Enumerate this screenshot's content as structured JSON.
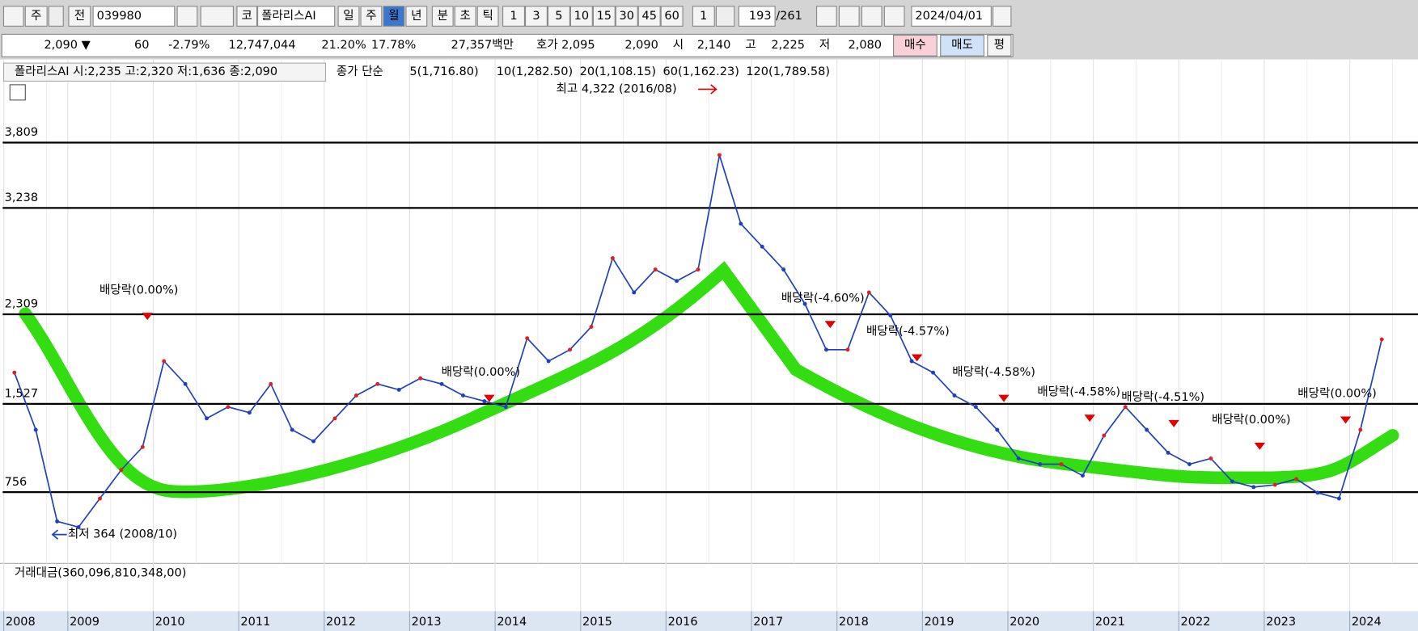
{
  "toolbar": {
    "market": "주",
    "prev": "전",
    "code": "039980",
    "exchange": "코",
    "name": "폴라리스AI",
    "periods": [
      "일",
      "주",
      "월",
      "년",
      "분",
      "초",
      "틱"
    ],
    "intervals": [
      "1",
      "3",
      "5",
      "10",
      "15",
      "30",
      "45",
      "60"
    ],
    "count": "1",
    "position": "193",
    "total": "/261",
    "date": "2024/04/01"
  },
  "quote": {
    "price": "2,090 ▼",
    "change": "60",
    "change_pct": "-2.79%",
    "volume": "12,747,044",
    "ratio1": "21.20%",
    "ratio2": "17.78%",
    "amount": "27,357백만",
    "bid_label": "호가",
    "ask": "2,095",
    "bid": "2,090",
    "open_label": "시",
    "open": "2,140",
    "high_label": "고",
    "high": "2,225",
    "low_label": "저",
    "low": "2,080",
    "buy": "매수",
    "sell": "매도",
    "avg": "평"
  },
  "legend": {
    "price": "폴라리스AI 시:2,235 고:2,320 저:1,636 종:2,090",
    "ma_title": "종가 단순",
    "ma": [
      {
        "label": "5(1,716.80)",
        "color": "#e020c0"
      },
      {
        "label": "10(1,282.50)",
        "color": "#2040e0"
      },
      {
        "label": "20(1,108.15)",
        "color": "#f0a000"
      },
      {
        "label": "60(1,162.23)",
        "color": "#10a020"
      },
      {
        "label": "120(1,789.58)",
        "color": "#888888"
      }
    ]
  },
  "chart_data": {
    "type": "line",
    "color": "#1f3fbf",
    "categories": [
      "2008",
      null,
      null,
      "2009",
      null,
      null,
      null,
      "2010",
      null,
      null,
      null,
      "2011",
      null,
      null,
      null,
      "2012",
      null,
      null,
      null,
      "2013",
      null,
      null,
      null,
      "2014",
      null,
      null,
      null,
      "2015",
      null,
      null,
      null,
      "2016",
      null,
      null,
      null,
      "2017",
      null,
      null,
      null,
      "2018",
      null,
      null,
      null,
      "2019",
      null,
      null,
      null,
      "2020",
      null,
      null,
      null,
      "2021",
      null,
      null,
      null,
      "2022",
      null,
      null,
      null,
      "2023",
      null,
      null,
      null,
      "2024",
      null
    ],
    "values": [
      1800,
      1300,
      500,
      450,
      700,
      950,
      1150,
      1900,
      1700,
      1400,
      1500,
      1450,
      1700,
      1300,
      1200,
      1400,
      1600,
      1700,
      1650,
      1750,
      1700,
      1600,
      1550,
      1500,
      2100,
      1900,
      2000,
      2200,
      2800,
      2500,
      2700,
      2600,
      2700,
      3700,
      3100,
      2900,
      2700,
      2400,
      2000,
      2000,
      2500,
      2300,
      1900,
      1800,
      1600,
      1500,
      1300,
      1050,
      1000,
      1000,
      900,
      1250,
      1500,
      1300,
      1100,
      1000,
      1050,
      850,
      800,
      820,
      870,
      750,
      700,
      1300,
      2090
    ],
    "ylim": [
      157,
      4330
    ],
    "levels": [
      {
        "value": 3809,
        "label": "3,809"
      },
      {
        "value": 3238,
        "label": "3,238"
      },
      {
        "value": 2309,
        "label": "2,309"
      },
      {
        "value": 1527,
        "label": "1,527"
      },
      {
        "value": 756,
        "label": "756"
      }
    ],
    "annotations": [
      "배당락(0.00%)",
      "배당락(0.00%)",
      "배당락(-4.60%)",
      "배당락(-4.57%)",
      "배당락(-4.58%)",
      "배당락(-4.58%)",
      "배당락(-4.51%)",
      "배당락(0.00%)",
      "배당락(0.00%)"
    ],
    "high_note": "최고 4,322 (2016/08)",
    "low_note": "최저 364 (2008/10)",
    "volume_title": "거래대금(360,096,810,348,00)"
  }
}
